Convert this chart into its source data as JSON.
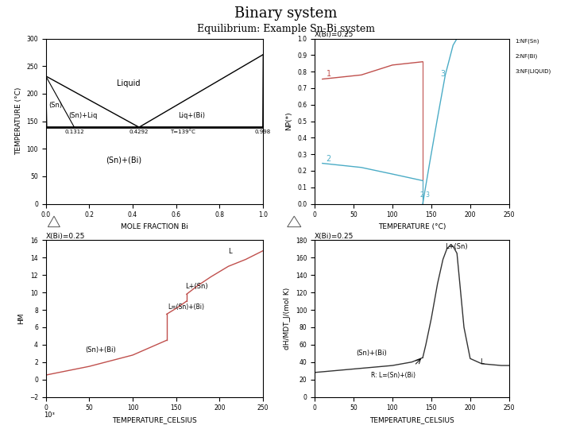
{
  "title": "Binary system",
  "subtitle": "Equilibrium: Example Sn-Bi system",
  "bg_color": "#ffffff",
  "phase_diagram": {
    "xlabel": "MOLE FRACTION Bi",
    "ylabel": "TEMPERATURE (°C)",
    "xlim": [
      0,
      1.0
    ],
    "ylim": [
      0,
      300
    ],
    "sn_melt": 232,
    "bi_melt": 271,
    "eutectic_T": 139,
    "eutectic_x": 0.4292,
    "sn_solidus_x": 0.1312,
    "bi_solidus_x": 0.998,
    "tick_labels_x": [
      0,
      0.2,
      0.4,
      0.6,
      0.8,
      1.0
    ],
    "tick_labels_y": [
      0,
      50,
      100,
      150,
      200,
      250,
      300
    ]
  },
  "mole_fraction_plot": {
    "title": "X(Bi)=0.25",
    "xlabel": "TEMPERATURE (°C)",
    "ylabel": "NP(*)",
    "xlim": [
      0,
      250
    ],
    "ylim": [
      0,
      1.0
    ],
    "color1": "#c0504d",
    "color2": "#4bacc6",
    "tick_labels_x": [
      0,
      50,
      100,
      150,
      200,
      250
    ],
    "tick_labels_y": [
      0.0,
      0.1,
      0.2,
      0.3,
      0.4,
      0.5,
      0.6,
      0.7,
      0.8,
      0.9,
      1.0
    ]
  },
  "hm_plot": {
    "title": "X(Bi)=0.25",
    "xlabel": "TEMPERATURE_CELSIUS",
    "ylabel": "HM",
    "xlim": [
      0,
      250
    ],
    "ylim": [
      -2,
      16
    ],
    "color": "#c0504d",
    "tick_labels_x": [
      0,
      50,
      100,
      150,
      200,
      250
    ],
    "tick_labels_y": [
      -2,
      0,
      2,
      4,
      6,
      8,
      10,
      12,
      14,
      16
    ]
  },
  "dhdT_plot": {
    "title": "X(Bi)=0.25",
    "xlabel": "TEMPERATURE_CELSIUS",
    "ylabel": "dH/MDT_J/(mol K)",
    "xlim": [
      0,
      250
    ],
    "ylim": [
      0,
      180
    ],
    "color": "#333333",
    "tick_labels_x": [
      0,
      50,
      100,
      150,
      200,
      250
    ],
    "tick_labels_y": [
      0,
      20,
      40,
      60,
      80,
      100,
      120,
      140,
      160,
      180
    ]
  }
}
